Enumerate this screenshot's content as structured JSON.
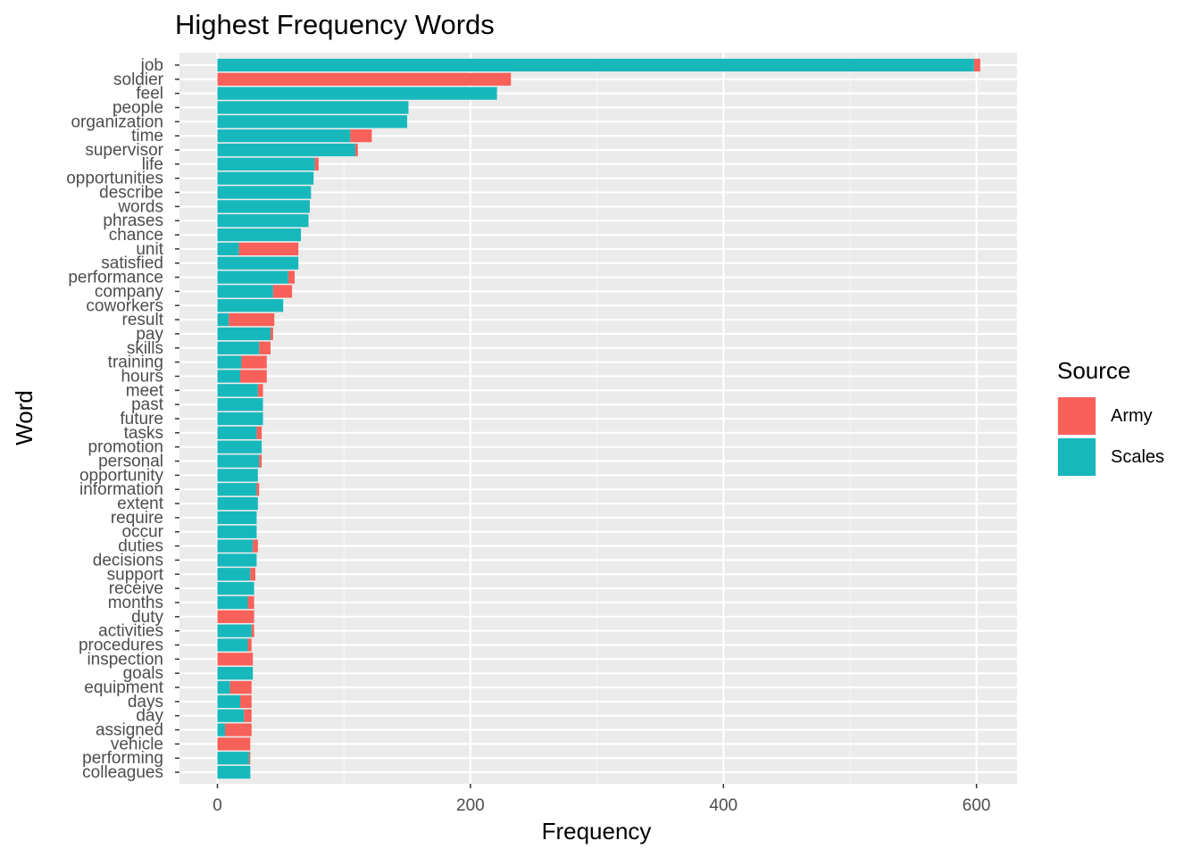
{
  "chart_data": {
    "type": "bar",
    "orientation": "horizontal",
    "stacked": true,
    "title": "Highest Frequency Words",
    "xlabel": "Frequency",
    "ylabel": "Word",
    "xlim": [
      -30,
      632
    ],
    "xticks": [
      0,
      200,
      400,
      600
    ],
    "grid": true,
    "legend": {
      "title": "Source",
      "placement": "right"
    },
    "categories": [
      "job",
      "soldier",
      "feel",
      "people",
      "organization",
      "time",
      "supervisor",
      "life",
      "opportunities",
      "describe",
      "words",
      "phrases",
      "chance",
      "unit",
      "satisfied",
      "performance",
      "company",
      "coworkers",
      "result",
      "pay",
      "skills",
      "training",
      "hours",
      "meet",
      "past",
      "future",
      "tasks",
      "promotion",
      "personal",
      "opportunity",
      "information",
      "extent",
      "require",
      "occur",
      "duties",
      "decisions",
      "support",
      "receive",
      "months",
      "duty",
      "activities",
      "procedures",
      "inspection",
      "goals",
      "equipment",
      "days",
      "day",
      "assigned",
      "vehicle",
      "performing",
      "colleagues"
    ],
    "series": [
      {
        "name": "Scales",
        "color": "#17b8bc",
        "values": [
          598,
          0,
          221,
          151,
          150,
          105,
          109,
          77,
          76,
          74,
          73,
          72,
          66,
          17,
          64,
          56,
          44,
          52,
          9,
          42,
          33,
          19,
          18,
          32,
          36,
          36,
          31,
          35,
          33,
          32,
          31,
          32,
          31,
          31,
          28,
          31,
          26,
          29,
          24,
          0,
          27,
          24,
          0,
          28,
          10,
          18,
          21,
          6,
          0,
          25,
          26
        ]
      },
      {
        "name": "Army",
        "color": "#f8605a",
        "values": [
          5,
          232,
          0,
          0,
          0,
          17,
          2,
          3,
          0,
          0,
          0,
          0,
          0,
          47,
          0,
          5,
          15,
          0,
          36,
          2,
          9,
          20,
          21,
          4,
          0,
          0,
          4,
          0,
          2,
          0,
          2,
          0,
          0,
          0,
          4,
          0,
          4,
          0,
          5,
          29,
          2,
          3,
          28,
          0,
          17,
          9,
          6,
          21,
          26,
          1,
          0
        ]
      }
    ]
  }
}
